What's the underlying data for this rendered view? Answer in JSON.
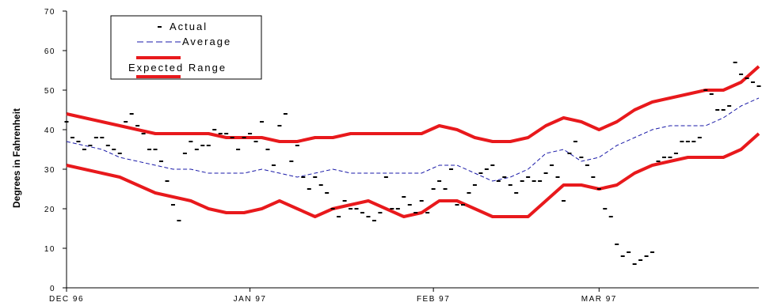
{
  "chart_data": {
    "type": "line",
    "ylabel": "Degrees in Fahrenheit",
    "xlabel": "",
    "ylim": [
      0,
      70
    ],
    "yticks": [
      0,
      10,
      20,
      30,
      40,
      50,
      60,
      70
    ],
    "xlim": [
      0,
      117
    ],
    "x_unit": "days since Dec 1 1996",
    "xticks": [
      {
        "x": 0,
        "label": "DEC 96"
      },
      {
        "x": 31,
        "label": "JAN 97"
      },
      {
        "x": 62,
        "label": "FEB 97"
      },
      {
        "x": 90,
        "label": "MAR 97"
      }
    ],
    "grid": false,
    "legend": {
      "position": "top-left",
      "entries": [
        "Actual",
        "Average",
        "Expected Range"
      ]
    },
    "colors": {
      "actual": "#000000",
      "average": "#1a1aa8",
      "range": "#e8191c"
    },
    "series": [
      {
        "name": "Actual",
        "style": "dash-marker",
        "x": [
          0,
          1,
          2,
          3,
          4,
          5,
          6,
          7,
          8,
          9,
          10,
          11,
          12,
          13,
          14,
          15,
          16,
          17,
          18,
          19,
          20,
          21,
          22,
          23,
          24,
          25,
          26,
          27,
          28,
          29,
          30,
          31,
          32,
          33,
          34,
          35,
          36,
          37,
          38,
          39,
          40,
          41,
          42,
          43,
          44,
          45,
          46,
          47,
          48,
          49,
          50,
          51,
          52,
          53,
          54,
          55,
          56,
          57,
          58,
          59,
          60,
          61,
          62,
          63,
          64,
          65,
          66,
          67,
          68,
          69,
          70,
          71,
          72,
          73,
          74,
          75,
          76,
          77,
          78,
          79,
          80,
          81,
          82,
          83,
          84,
          85,
          86,
          87,
          88,
          89,
          90,
          91,
          92,
          93,
          94,
          95,
          96,
          97,
          98,
          99,
          100,
          101,
          102,
          103,
          104,
          105,
          106,
          107,
          108,
          109,
          110,
          111,
          112,
          113,
          114,
          115,
          116,
          117
        ],
        "values": [
          42,
          38,
          37,
          35,
          36,
          38,
          38,
          36,
          35,
          34,
          42,
          44,
          41,
          39,
          35,
          35,
          32,
          27,
          21,
          17,
          34,
          37,
          35,
          36,
          36,
          40,
          39,
          39,
          38,
          35,
          38,
          39,
          37,
          42,
          35,
          31,
          41,
          44,
          32,
          36,
          28,
          25,
          28,
          26,
          24,
          20,
          18,
          22,
          20,
          20,
          19,
          18,
          17,
          19,
          28,
          20,
          20,
          23,
          21,
          19,
          22,
          19,
          25,
          27,
          25,
          30,
          21,
          21,
          24,
          26,
          29,
          30,
          31,
          27,
          28,
          26,
          24,
          27,
          28,
          27,
          27,
          29,
          31,
          28,
          22,
          34,
          37,
          33,
          31,
          28,
          25,
          20,
          18,
          11,
          8,
          9,
          6,
          7,
          8,
          9,
          32,
          33,
          33,
          34,
          37,
          37,
          37,
          38,
          50,
          49,
          45,
          45,
          46,
          57,
          54,
          53,
          52,
          51
        ],
        "note": "scattered daily readings; approximate"
      },
      {
        "name": "Average",
        "style": "dashed",
        "x": [
          0,
          3,
          6,
          9,
          12,
          15,
          18,
          21,
          24,
          27,
          30,
          33,
          36,
          39,
          42,
          45,
          48,
          51,
          54,
          57,
          60,
          63,
          66,
          69,
          72,
          75,
          78,
          81,
          84,
          87,
          90,
          93,
          96,
          99,
          102,
          105,
          108,
          111,
          114,
          117
        ],
        "values": [
          37,
          36,
          35,
          33,
          32,
          31,
          30,
          30,
          29,
          29,
          29,
          30,
          29,
          28,
          29,
          30,
          29,
          29,
          29,
          29,
          29,
          31,
          31,
          29,
          27,
          28,
          30,
          34,
          35,
          32,
          33,
          36,
          38,
          40,
          41,
          41,
          41,
          43,
          46,
          48
        ]
      },
      {
        "name": "Expected Range (high)",
        "style": "thick",
        "x": [
          0,
          3,
          6,
          9,
          12,
          15,
          18,
          21,
          24,
          27,
          30,
          33,
          36,
          39,
          42,
          45,
          48,
          51,
          54,
          57,
          60,
          63,
          66,
          69,
          72,
          75,
          78,
          81,
          84,
          87,
          90,
          93,
          96,
          99,
          102,
          105,
          108,
          111,
          114,
          117
        ],
        "values": [
          44,
          43,
          42,
          41,
          40,
          39,
          39,
          39,
          39,
          38,
          38,
          38,
          37,
          37,
          38,
          38,
          39,
          39,
          39,
          39,
          39,
          41,
          40,
          38,
          37,
          37,
          38,
          41,
          43,
          42,
          40,
          42,
          45,
          47,
          48,
          49,
          50,
          50,
          52,
          56
        ]
      },
      {
        "name": "Expected Range (low)",
        "style": "thick",
        "x": [
          0,
          3,
          6,
          9,
          12,
          15,
          18,
          21,
          24,
          27,
          30,
          33,
          36,
          39,
          42,
          45,
          48,
          51,
          54,
          57,
          60,
          63,
          66,
          69,
          72,
          75,
          78,
          81,
          84,
          87,
          90,
          93,
          96,
          99,
          102,
          105,
          108,
          111,
          114,
          117
        ],
        "values": [
          31,
          30,
          29,
          28,
          26,
          24,
          23,
          22,
          20,
          19,
          19,
          20,
          22,
          20,
          18,
          20,
          21,
          22,
          20,
          18,
          19,
          22,
          22,
          20,
          18,
          18,
          18,
          22,
          26,
          26,
          25,
          26,
          29,
          31,
          32,
          33,
          33,
          33,
          35,
          39
        ]
      }
    ]
  }
}
